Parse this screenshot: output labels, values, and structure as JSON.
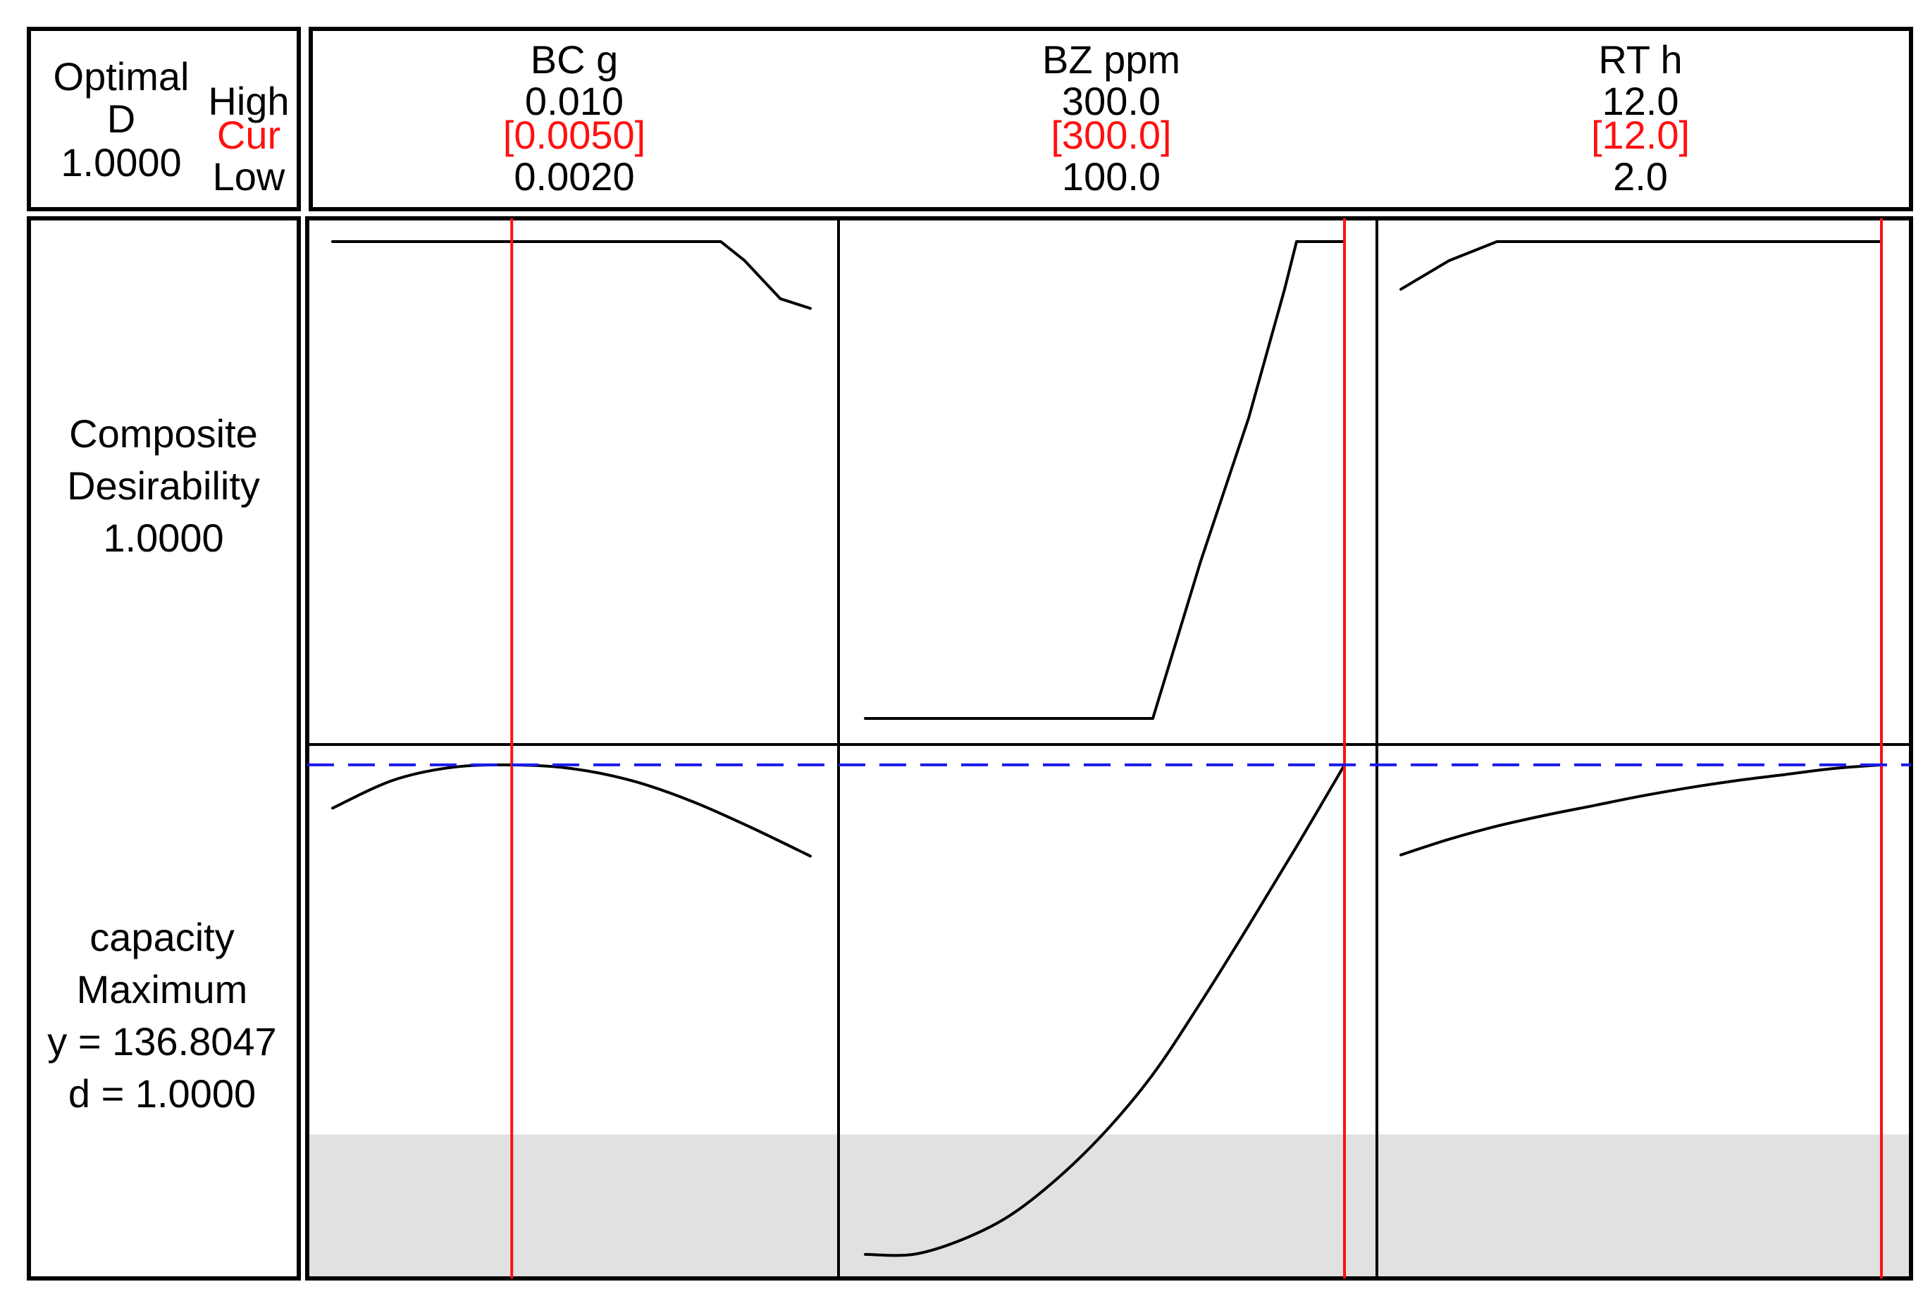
{
  "optimal": {
    "title": "Optimal",
    "d_symbol": "D",
    "d_value": "1.0000",
    "high_label": "High",
    "cur_label": "Cur",
    "low_label": "Low"
  },
  "factors": [
    {
      "name": "BC g",
      "high": "0.010",
      "cur": "[0.0050]",
      "low": "0.0020"
    },
    {
      "name": "BZ ppm",
      "high": "300.0",
      "cur": "[300.0]",
      "low": "100.0"
    },
    {
      "name": "RT h",
      "high": "12.0",
      "cur": "[12.0]",
      "low": "2.0"
    }
  ],
  "composite": {
    "line1": "Composite",
    "line2": "Desirability",
    "value": "1.0000"
  },
  "response": {
    "name": "capacity",
    "goal": "Maximum",
    "y_text": "y = 136.8047",
    "d_text": "d = 1.0000"
  },
  "colors": {
    "current_line": "#ff1010",
    "optimum_line": "#1a1aee",
    "shaded": "#e1e1e1",
    "frame": "#000000"
  },
  "chart_data": {
    "type": "line",
    "current_settings": [
      0.005,
      300.0,
      12.0
    ],
    "y_optimal": 136.8047,
    "panels": [
      {
        "factor": "BC g",
        "x_range": [
          0.002,
          0.01
        ],
        "desirability": {
          "x": [
            0.002,
            0.0085,
            0.0089,
            0.0092,
            0.0095,
            0.01
          ],
          "d": [
            1.0,
            1.0,
            0.96,
            0.92,
            0.88,
            0.86
          ]
        },
        "capacity": {
          "x": [
            0.002,
            0.003,
            0.004,
            0.005,
            0.006,
            0.007,
            0.008,
            0.009,
            0.01
          ],
          "y": [
            133.2,
            135.5,
            136.6,
            136.8,
            136.5,
            135.5,
            133.8,
            131.6,
            129.2
          ]
        }
      },
      {
        "factor": "BZ ppm",
        "x_range": [
          100.0,
          300.0
        ],
        "desirability": {
          "x": [
            100,
            220,
            240,
            260,
            275,
            280,
            300
          ],
          "d": [
            0.0,
            0.0,
            0.33,
            0.63,
            0.9,
            1.0,
            1.0
          ]
        },
        "capacity": {
          "x": [
            100,
            120,
            140,
            160,
            180,
            200,
            220,
            240,
            260,
            280,
            300
          ],
          "y": [
            96.0,
            96.0,
            97.2,
            99.2,
            102.3,
            106.2,
            111.0,
            117.0,
            123.4,
            130.0,
            136.8
          ]
        }
      },
      {
        "factor": "RT h",
        "x_range": [
          2.0,
          12.0
        ],
        "desirability": {
          "x": [
            2.0,
            3.0,
            4.0,
            12.0
          ],
          "d": [
            0.9,
            0.96,
            1.0,
            1.0
          ]
        },
        "capacity": {
          "x": [
            2,
            3,
            4,
            5,
            6,
            7,
            8,
            9,
            10,
            11,
            12
          ],
          "y": [
            129.3,
            130.6,
            131.7,
            132.6,
            133.4,
            134.2,
            134.9,
            135.5,
            136.0,
            136.5,
            136.8
          ]
        }
      }
    ],
    "desirability_ylim": [
      0,
      1
    ],
    "capacity_ylim": [
      94,
      138.5
    ],
    "shaded_below": 106
  }
}
